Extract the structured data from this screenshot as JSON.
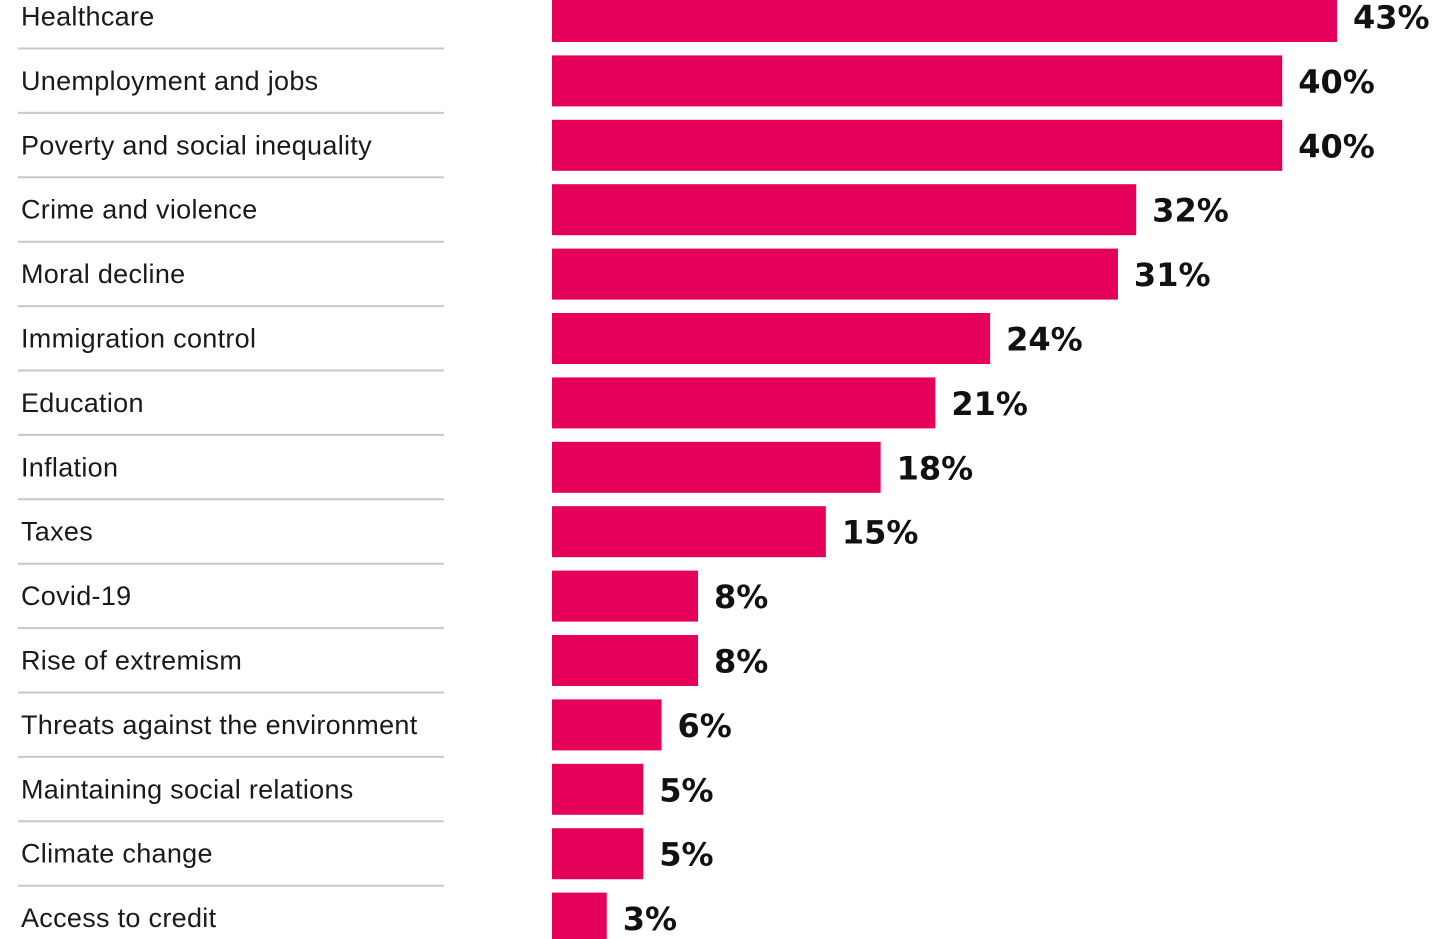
{
  "chart_data": {
    "type": "bar",
    "orientation": "horizontal",
    "title": "",
    "xlabel": "",
    "ylabel": "",
    "categories": [
      "Healthcare",
      "Unemployment and jobs",
      "Poverty and social inequality",
      "Crime and violence",
      "Moral decline",
      "Immigration control",
      "Education",
      "Inflation",
      "Taxes",
      "Covid-19",
      "Rise of extremism",
      "Threats against the environment",
      "Maintaining social relations",
      "Climate change",
      "Access to credit"
    ],
    "values": [
      43,
      40,
      40,
      32,
      31,
      24,
      21,
      18,
      15,
      8,
      8,
      6,
      5,
      5,
      3
    ],
    "value_labels": [
      "43%",
      "40%",
      "40%",
      "32%",
      "31%",
      "24%",
      "21%",
      "18%",
      "15%",
      "8%",
      "8%",
      "6%",
      "5%",
      "5%",
      "3%"
    ],
    "unit": "%",
    "xlim": [
      0,
      43
    ],
    "grid": false,
    "legend": "none",
    "bar_color": "#E5005A"
  }
}
